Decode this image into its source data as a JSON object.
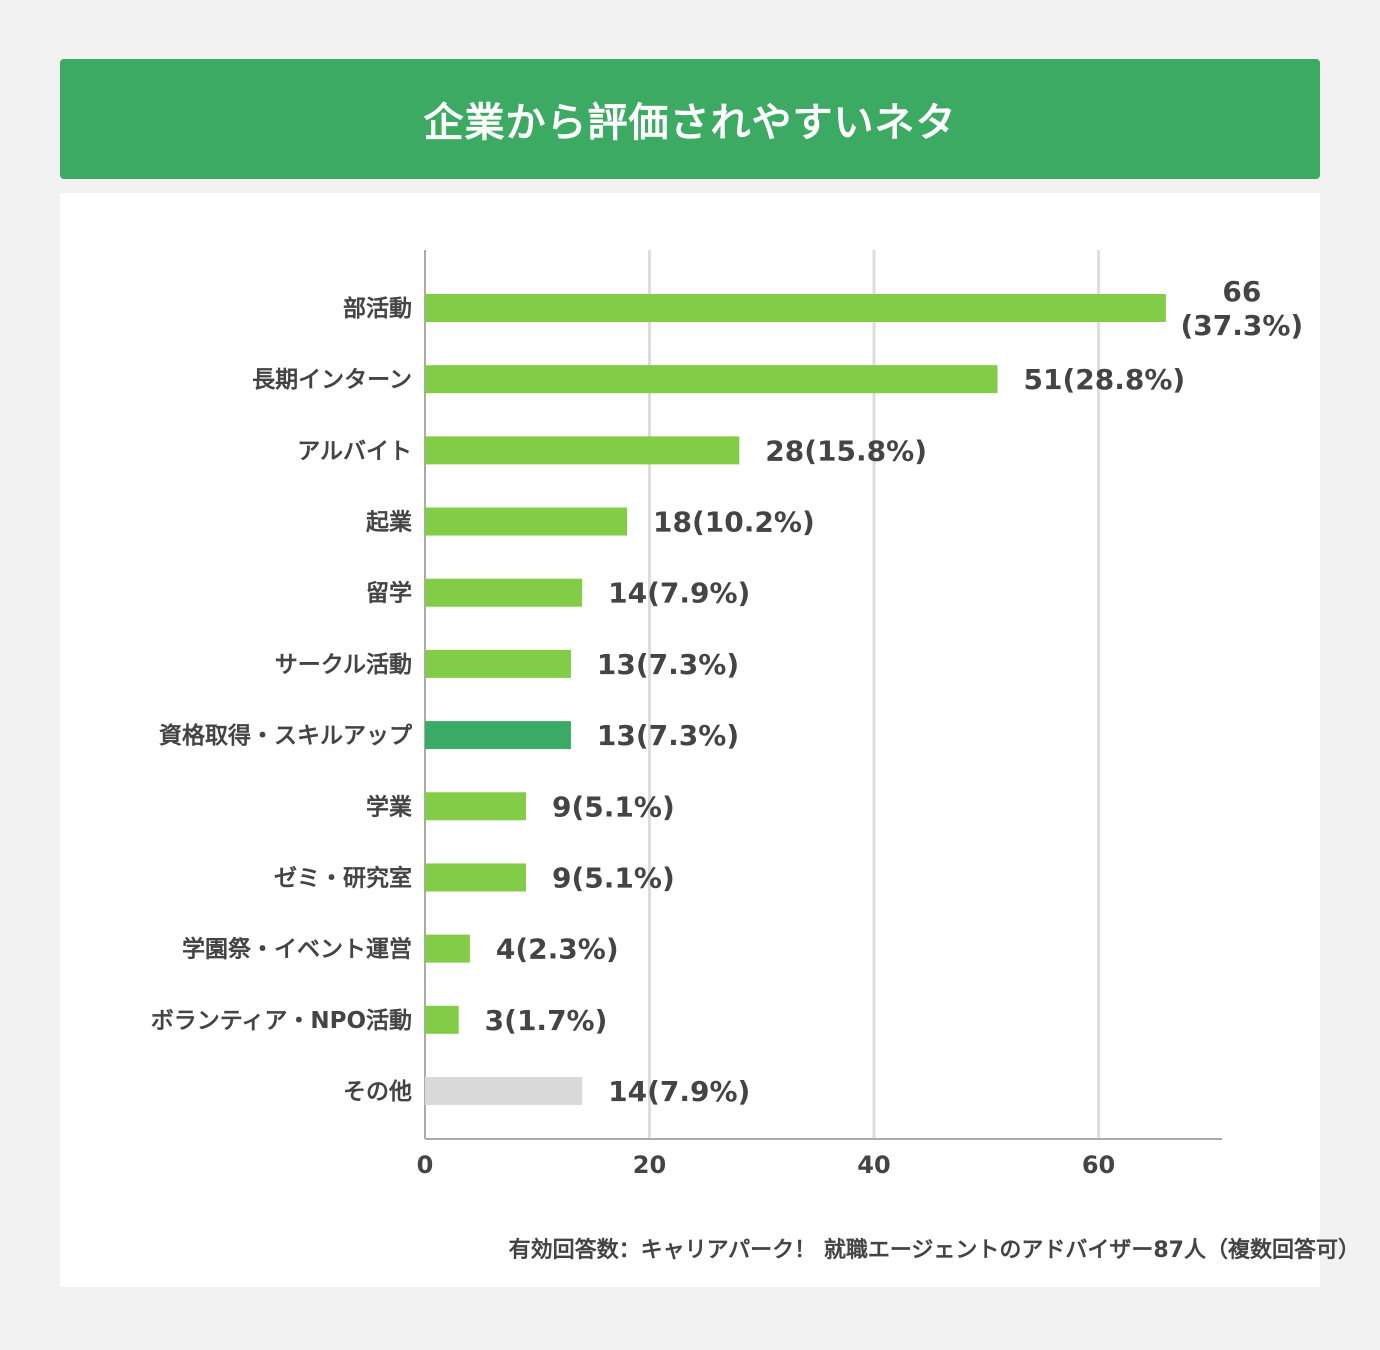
{
  "header": {
    "title": "企業から評価されやすいネタ"
  },
  "chart_data": {
    "type": "bar",
    "orientation": "horizontal",
    "categories": [
      "部活動",
      "長期インターン",
      "アルバイト",
      "起業",
      "留学",
      "サークル活動",
      "資格取得・スキルアップ",
      "学業",
      "ゼミ・研究室",
      "学園祭・イベント運営",
      "ボランティア・NPO活動",
      "その他"
    ],
    "values": [
      66,
      51,
      28,
      18,
      14,
      13,
      13,
      9,
      9,
      4,
      3,
      14
    ],
    "percent_labels": [
      "(37.3%)",
      "(28.8%)",
      "(15.8%)",
      "(10.2%)",
      "(7.9%)",
      "(7.3%)",
      "(7.3%)",
      "(5.1%)",
      "(5.1%)",
      "(2.3%)",
      "(1.7%)",
      "(7.9%)"
    ],
    "bar_colors": [
      "#82cc47",
      "#82cc47",
      "#82cc47",
      "#82cc47",
      "#82cc47",
      "#82cc47",
      "#3aaa64",
      "#82cc47",
      "#82cc47",
      "#82cc47",
      "#82cc47",
      "#d9d9d9"
    ],
    "xticks": [
      "0",
      "20",
      "40",
      "60"
    ],
    "xlim": [
      0,
      71
    ],
    "grid": true,
    "title": "",
    "xlabel": "",
    "ylabel": ""
  },
  "footnote": "有効回答数：キャリアパーク！ 就職エージェントのアドバイザー87人（複数回答可）",
  "colors": {
    "header": "#3daa64",
    "background": "#f2f2f2",
    "axis": "#aaaaaa",
    "grid": "#dddddd"
  }
}
